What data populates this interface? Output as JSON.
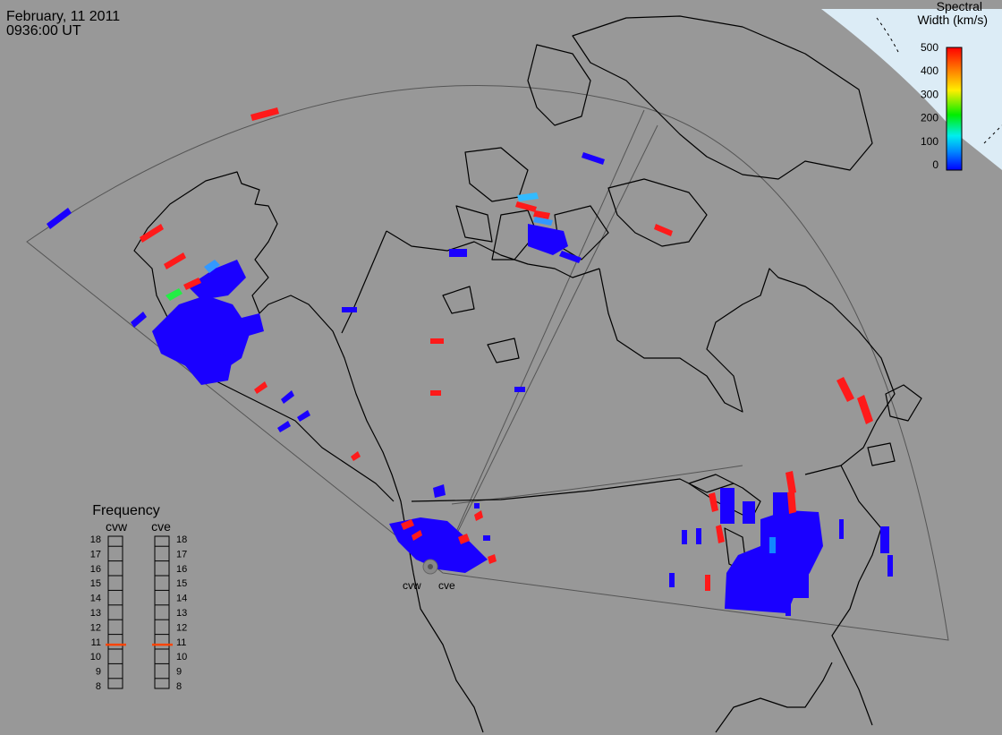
{
  "header": {
    "date": "February, 11 2011",
    "time": "0936:00 UT"
  },
  "colorbar": {
    "title_line1": "Spectral",
    "title_line2": "Width (km/s)",
    "ticks": [
      "500",
      "400",
      "300",
      "200",
      "100",
      "0"
    ]
  },
  "frequency_panel": {
    "title": "Frequency",
    "radars": [
      "cvw",
      "cve"
    ],
    "scale": [
      "18",
      "17",
      "16",
      "15",
      "14",
      "13",
      "12",
      "11",
      "10",
      "9",
      "8"
    ],
    "cvw_frequency_mhz": 10.8,
    "cve_frequency_mhz": 10.8
  },
  "sites": {
    "left": "cvw",
    "right": "cve"
  },
  "colors": {
    "background": "#989898",
    "scatter_low": "#1a00ff",
    "scatter_high": "#ff1a1a",
    "polar_cap": "#dcecf6",
    "frequency_marker": "#ff4400"
  }
}
